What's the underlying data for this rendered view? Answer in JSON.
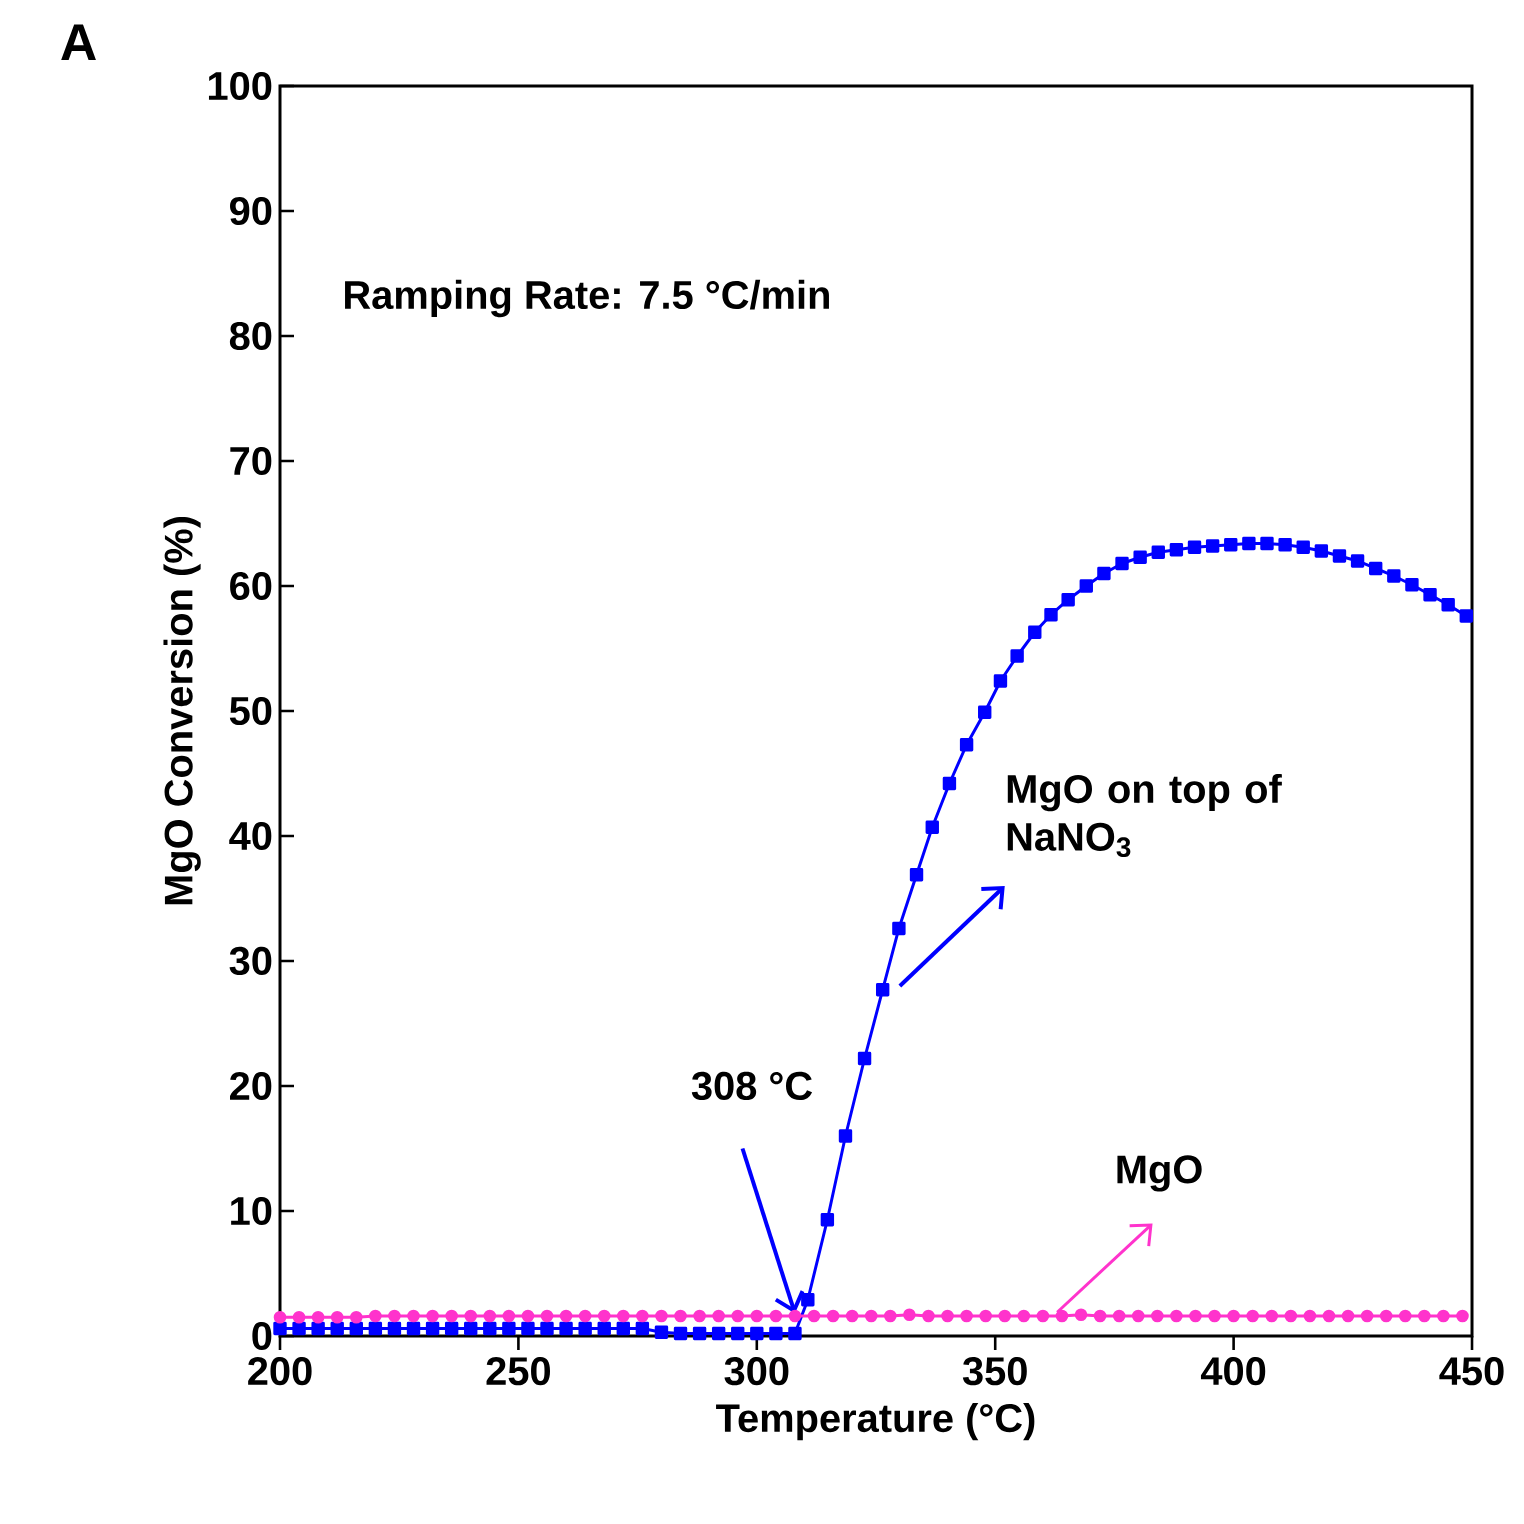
{
  "chart_data": {
    "type": "line",
    "xlabel": "Temperature (°C)",
    "ylabel": "MgO Conversion (%)",
    "xlim": [
      200,
      450
    ],
    "ylim": [
      0,
      100
    ],
    "xticks": [
      200,
      250,
      300,
      350,
      400,
      450
    ],
    "yticks": [
      0,
      10,
      20,
      30,
      40,
      50,
      60,
      70,
      80,
      90,
      100
    ],
    "grid": false,
    "legend": false,
    "annotations": [
      "A",
      "Ramping Rate:   7.5 °C/min",
      {
        "text": "308 °C",
        "x": 308,
        "y": 1.5
      }
    ],
    "series": [
      {
        "name": "MgO on top of NaNO$_{3}$",
        "color": "#0000ff",
        "marker": "square",
        "x": [
          200,
          204,
          208,
          212,
          216,
          220,
          224,
          228,
          232,
          236,
          240,
          244,
          248,
          252,
          256,
          260,
          264,
          268,
          272,
          276,
          280,
          284,
          288,
          292,
          296,
          300,
          304,
          308,
          310.7,
          314.8,
          318.6,
          322.6,
          326.4,
          329.8,
          333.5,
          336.8,
          340.4,
          344.0,
          347.8,
          351.1,
          354.6,
          358.3,
          361.7,
          365.3,
          369.1,
          372.8,
          376.6,
          380.4,
          384.2,
          388.0,
          391.8,
          395.6,
          399.4,
          403.2,
          407.0,
          410.8,
          414.6,
          418.4,
          422.2,
          426.0,
          429.8,
          433.6,
          437.4,
          441.2,
          445.0,
          448.8
        ],
        "values": [
          0.6,
          0.6,
          0.6,
          0.6,
          0.6,
          0.6,
          0.6,
          0.6,
          0.6,
          0.6,
          0.6,
          0.6,
          0.6,
          0.6,
          0.6,
          0.6,
          0.6,
          0.6,
          0.6,
          0.6,
          0.3,
          0.2,
          0.2,
          0.2,
          0.2,
          0.2,
          0.2,
          0.2,
          2.9,
          9.3,
          16.0,
          22.2,
          27.7,
          32.6,
          36.9,
          40.7,
          44.2,
          47.3,
          49.9,
          52.4,
          54.4,
          56.3,
          57.7,
          58.9,
          60.0,
          61.0,
          61.8,
          62.3,
          62.7,
          62.9,
          63.1,
          63.2,
          63.3,
          63.4,
          63.4,
          63.3,
          63.1,
          62.8,
          62.4,
          62.0,
          61.4,
          60.8,
          60.1,
          59.3,
          58.5,
          57.6
        ]
      },
      {
        "name": "MgO",
        "color": "#ff33cc",
        "marker": "circle",
        "x": [
          200,
          204,
          208,
          212,
          216,
          220,
          224,
          228,
          232,
          236,
          240,
          244,
          248,
          252,
          256,
          260,
          264,
          268,
          272,
          276,
          280,
          284,
          288,
          292,
          296,
          300,
          304,
          308,
          312,
          316,
          320,
          324,
          328,
          332,
          336,
          340,
          344,
          348,
          352,
          356,
          360,
          364,
          368,
          372,
          376,
          380,
          384,
          388,
          392,
          396,
          400,
          404,
          408,
          412,
          416,
          420,
          424,
          428,
          432,
          436,
          440,
          444,
          448
        ],
        "values": [
          1.5,
          1.5,
          1.5,
          1.5,
          1.5,
          1.6,
          1.6,
          1.6,
          1.6,
          1.6,
          1.6,
          1.6,
          1.6,
          1.6,
          1.6,
          1.6,
          1.6,
          1.6,
          1.6,
          1.6,
          1.6,
          1.6,
          1.6,
          1.6,
          1.6,
          1.6,
          1.6,
          1.6,
          1.6,
          1.6,
          1.6,
          1.6,
          1.6,
          1.7,
          1.6,
          1.6,
          1.6,
          1.6,
          1.6,
          1.6,
          1.6,
          1.6,
          1.7,
          1.6,
          1.6,
          1.6,
          1.6,
          1.6,
          1.6,
          1.6,
          1.6,
          1.6,
          1.6,
          1.6,
          1.6,
          1.6,
          1.6,
          1.6,
          1.6,
          1.6,
          1.6,
          1.6,
          1.6
        ]
      }
    ]
  }
}
